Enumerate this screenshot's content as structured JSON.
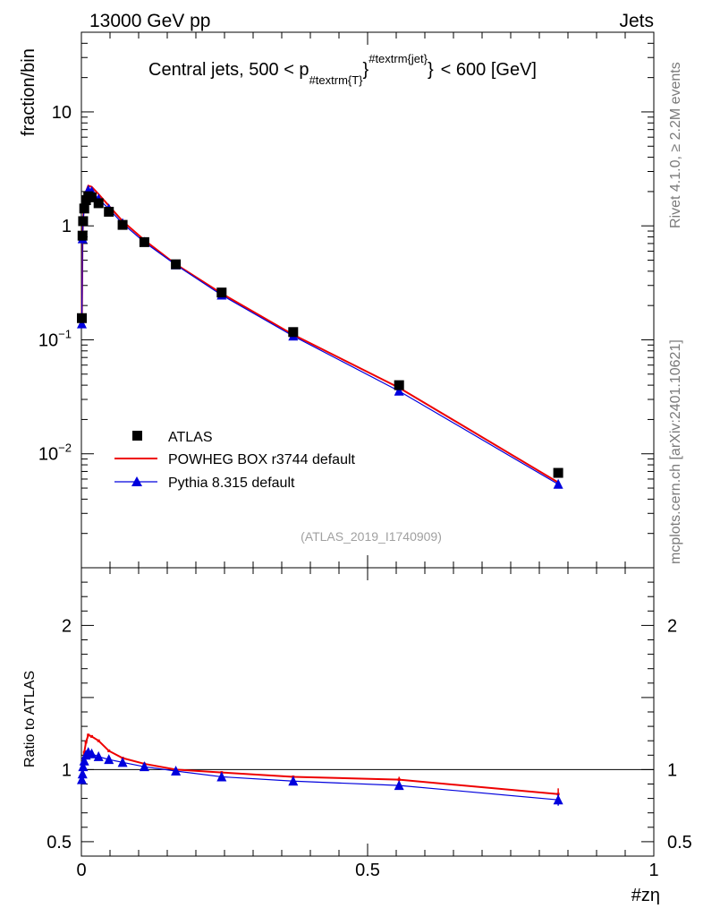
{
  "header": {
    "left": "13000 GeV pp",
    "right": "Jets",
    "side_top": "Rivet 4.1.0, ≥ 2.2M events",
    "side_bottom": "mcplots.cern.ch [arXiv:2401.10621]"
  },
  "chart_data": [
    {
      "type": "scatter",
      "panel": "main",
      "title": "Central jets, 500 < p",
      "title_sub": "#textrm{T}",
      "title_sup": "#textrm{jet}",
      "title_suffix": "< 600 [GeV]",
      "ylabel": "fraction/bin",
      "xlabel": "",
      "yscale": "log",
      "xlim": [
        0,
        1
      ],
      "ylim": [
        0.001,
        50
      ],
      "y_ticks": [
        {
          "value": 10,
          "base": "10",
          "exp": ""
        },
        {
          "value": 1,
          "base": "1",
          "exp": ""
        },
        {
          "value": 0.1,
          "base": "10",
          "exp": "−1"
        },
        {
          "value": 0.01,
          "base": "10",
          "exp": "−2"
        }
      ],
      "watermark": "(ATLAS_2019_I1740909)",
      "legend": {
        "position": "bottom-left",
        "entries": [
          "ATLAS",
          "POWHEG BOX r3744 default",
          "Pythia 8.315 default"
        ]
      },
      "series": [
        {
          "name": "ATLAS",
          "color": "#000000",
          "marker": "square",
          "x": [
            0.0008,
            0.002,
            0.003,
            0.005,
            0.008,
            0.012,
            0.018,
            0.03,
            0.048,
            0.072,
            0.11,
            0.165,
            0.245,
            0.37,
            0.555,
            0.833
          ],
          "y": [
            0.155,
            0.82,
            1.1,
            1.42,
            1.68,
            1.82,
            1.78,
            1.58,
            1.33,
            1.02,
            0.72,
            0.46,
            0.26,
            0.117,
            0.04,
            0.0068
          ]
        },
        {
          "name": "POWHEG BOX r3744 default",
          "color": "#ee0000",
          "marker": "line",
          "x": [
            0.0008,
            0.002,
            0.003,
            0.005,
            0.008,
            0.012,
            0.018,
            0.03,
            0.048,
            0.072,
            0.11,
            0.165,
            0.245,
            0.37,
            0.555,
            0.833
          ],
          "y": [
            0.145,
            0.8,
            1.15,
            1.6,
            2.0,
            2.25,
            2.2,
            1.9,
            1.5,
            1.1,
            0.75,
            0.46,
            0.255,
            0.111,
            0.038,
            0.0056
          ]
        },
        {
          "name": "Pythia 8.315 default",
          "color": "#0000dd",
          "marker": "triangle",
          "x": [
            0.0008,
            0.002,
            0.003,
            0.005,
            0.008,
            0.012,
            0.018,
            0.03,
            0.048,
            0.072,
            0.11,
            0.165,
            0.245,
            0.37,
            0.555,
            0.833
          ],
          "y": [
            0.138,
            0.77,
            1.1,
            1.48,
            1.85,
            2.05,
            2.0,
            1.72,
            1.41,
            1.05,
            0.72,
            0.455,
            0.247,
            0.108,
            0.0355,
            0.0054
          ]
        }
      ]
    },
    {
      "type": "line",
      "panel": "ratio",
      "ylabel": "Ratio to ATLAS",
      "xlabel": "#zη",
      "xlim": [
        0,
        1
      ],
      "ylim": [
        0.4,
        2.4
      ],
      "x_ticks": [
        {
          "value": 0,
          "label": "0"
        },
        {
          "value": 0.5,
          "label": "0.5"
        },
        {
          "value": 1,
          "label": "1"
        }
      ],
      "y_ticks": [
        {
          "value": 2,
          "label": "2"
        },
        {
          "value": 1,
          "label": "1"
        },
        {
          "value": 0.5,
          "label": "0.5"
        }
      ],
      "reference": 1,
      "series": [
        {
          "name": "POWHEG BOX r3744 default",
          "color": "#ee0000",
          "marker": "line",
          "x": [
            0.0008,
            0.002,
            0.003,
            0.005,
            0.008,
            0.012,
            0.018,
            0.03,
            0.048,
            0.072,
            0.11,
            0.165,
            0.245,
            0.37,
            0.555,
            0.833
          ],
          "y": [
            0.94,
            0.98,
            1.05,
            1.12,
            1.19,
            1.24,
            1.23,
            1.2,
            1.13,
            1.08,
            1.04,
            1.0,
            0.98,
            0.95,
            0.93,
            0.83
          ],
          "err": [
            0,
            0,
            0,
            0,
            0,
            0,
            0,
            0,
            0,
            0,
            0,
            0,
            0,
            0,
            0.02,
            0.04
          ]
        },
        {
          "name": "Pythia 8.315 default",
          "color": "#0000dd",
          "marker": "triangle",
          "x": [
            0.0008,
            0.002,
            0.003,
            0.005,
            0.008,
            0.012,
            0.018,
            0.03,
            0.048,
            0.072,
            0.11,
            0.165,
            0.245,
            0.37,
            0.555,
            0.833
          ],
          "y": [
            0.93,
            0.97,
            1.02,
            1.06,
            1.1,
            1.12,
            1.11,
            1.09,
            1.07,
            1.05,
            1.02,
            0.99,
            0.95,
            0.92,
            0.89,
            0.79
          ],
          "err": [
            0,
            0,
            0,
            0,
            0,
            0,
            0,
            0,
            0,
            0,
            0,
            0,
            0,
            0,
            0,
            0.04
          ]
        }
      ]
    }
  ]
}
